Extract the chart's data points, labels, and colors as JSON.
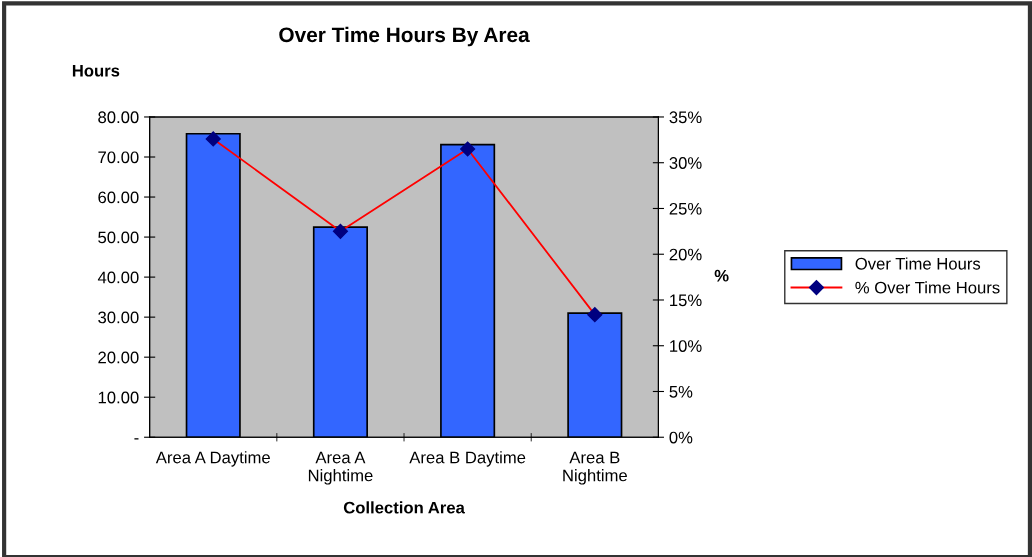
{
  "chart_data": {
    "type": "bar",
    "title": "Over Time Hours By Area",
    "xlabel": "Collection Area",
    "ylabel": "Hours",
    "y2label": "%",
    "categories": [
      "Area A Daytime",
      "Area A\nNightime",
      "Area B Daytime",
      "Area B\nNightime"
    ],
    "series": [
      {
        "name": "Over Time Hours",
        "color": "#3366ff",
        "values": [
          75.8,
          52.5,
          73.1,
          31.0
        ]
      },
      {
        "name": "% Over Time Hours",
        "type": "line",
        "axis": "y2",
        "color": "#ff0000",
        "marker": "diamond",
        "values": [
          32.6,
          22.5,
          31.5,
          13.4
        ]
      }
    ],
    "ylim": [
      0,
      80
    ],
    "yticks": [
      {
        "value": 0,
        "label": "-"
      },
      {
        "value": 10,
        "label": "10.00"
      },
      {
        "value": 20,
        "label": "20.00"
      },
      {
        "value": 30,
        "label": "30.00"
      },
      {
        "value": 40,
        "label": "40.00"
      },
      {
        "value": 50,
        "label": "50.00"
      },
      {
        "value": 60,
        "label": "60.00"
      },
      {
        "value": 70,
        "label": "70.00"
      },
      {
        "value": 80,
        "label": "80.00"
      }
    ],
    "y2lim": [
      0,
      35
    ],
    "y2ticks": [
      {
        "value": 0,
        "label": "0%"
      },
      {
        "value": 5,
        "label": "5%"
      },
      {
        "value": 10,
        "label": "10%"
      },
      {
        "value": 15,
        "label": "15%"
      },
      {
        "value": 20,
        "label": "20%"
      },
      {
        "value": 25,
        "label": "25%"
      },
      {
        "value": 30,
        "label": "30%"
      },
      {
        "value": 35,
        "label": "35%"
      }
    ],
    "grid": false,
    "legend": "right"
  }
}
